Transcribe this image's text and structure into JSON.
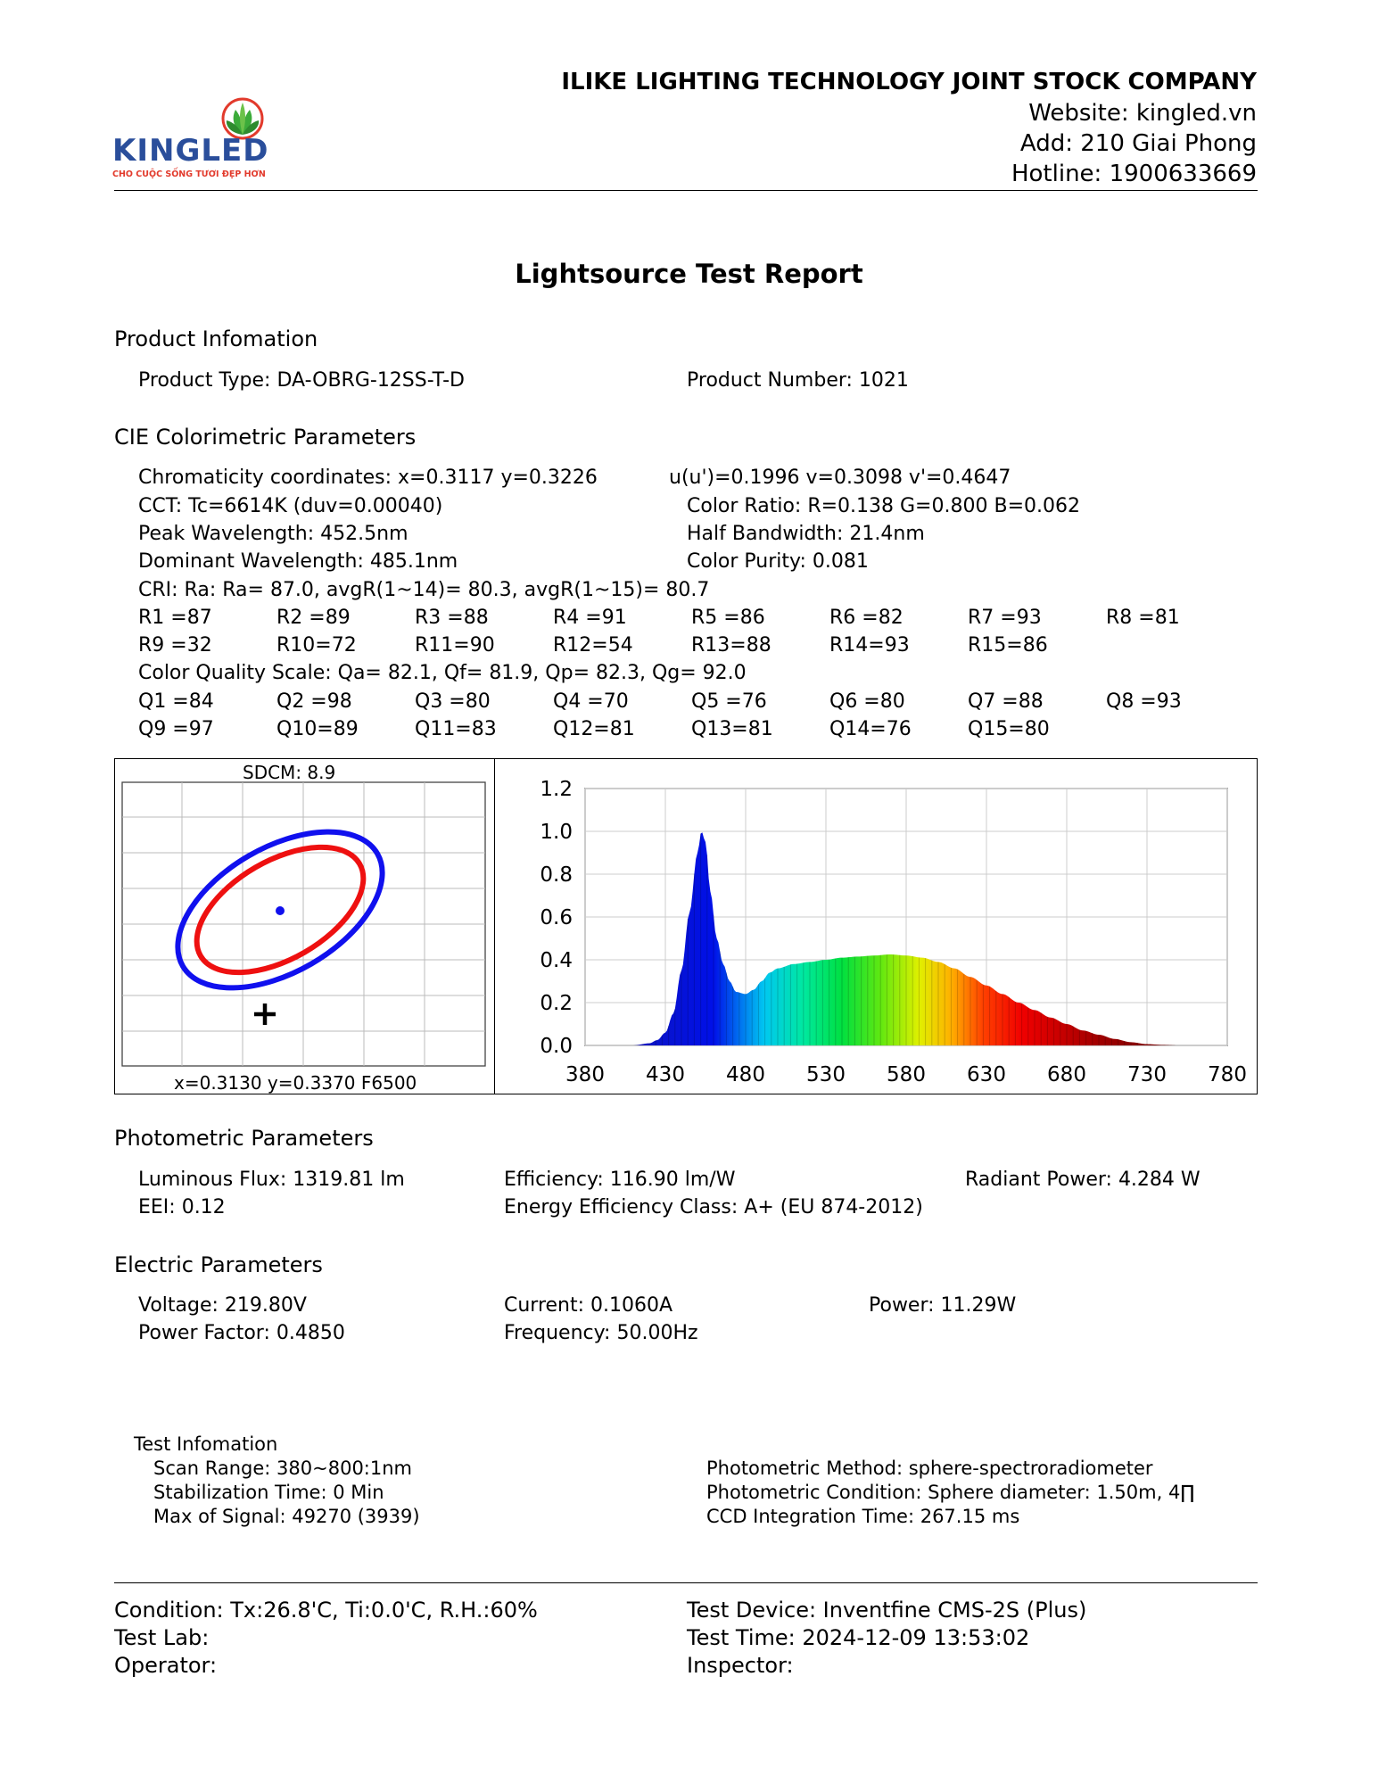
{
  "header": {
    "logo_text": "KINGLED",
    "logo_tagline": "CHO CUỘC SỐNG TƯƠI ĐẸP HƠN",
    "company": "ILIKE LIGHTING TECHNOLOGY JOINT STOCK COMPANY",
    "website": "Website: kingled.vn",
    "address": "Add: 210 Giai Phong",
    "hotline": "Hotline: 1900633669"
  },
  "title": "Lightsource Test Report",
  "product": {
    "heading": "Product Infomation",
    "type": "Product Type: DA-OBRG-12SS-T-D",
    "number": "Product Number: 1021"
  },
  "cie": {
    "heading": "CIE Colorimetric Parameters",
    "chroma": "Chromaticity coordinates: x=0.3117 y=0.3226",
    "uv": "u(u')=0.1996 v=0.3098 v'=0.4647",
    "cct": "CCT: Tc=6614K (duv=0.00040)",
    "color_ratio": "Color Ratio: R=0.138  G=0.800  B=0.062",
    "peak": "Peak Wavelength: 452.5nm",
    "half_bw": "Half Bandwidth: 21.4nm",
    "dominant": "Dominant Wavelength: 485.1nm",
    "purity": "Color Purity: 0.081",
    "cri": "CRI: Ra: Ra= 87.0, avgR(1~14)= 80.3, avgR(1~15)= 80.7",
    "r_row1": [
      "R1 =87",
      "R2 =89",
      "R3 =88",
      "R4 =91",
      "R5 =86",
      "R6 =82",
      "R7 =93",
      "R8 =81"
    ],
    "r_row2": [
      "R9 =32",
      "R10=72",
      "R11=90",
      "R12=54",
      "R13=88",
      "R14=93",
      "R15=86"
    ],
    "cqs": "Color Quality Scale: Qa= 82.1, Qf= 81.9, Qp= 82.3, Qg= 92.0",
    "q_row1": [
      "Q1 =84",
      "Q2 =98",
      "Q3 =80",
      "Q4 =70",
      "Q5 =76",
      "Q6 =80",
      "Q7 =88",
      "Q8 =93"
    ],
    "q_row2": [
      "Q9 =97",
      "Q10=89",
      "Q11=83",
      "Q12=81",
      "Q13=81",
      "Q14=76",
      "Q15=80"
    ]
  },
  "sdcm_chart": {
    "title": "SDCM:   8.9",
    "caption": "x=0.3130 y=0.3370 F6500",
    "colors": {
      "outer": "#1010ee",
      "inner": "#ee1010",
      "point": "#1010ee",
      "target": "#000000"
    }
  },
  "chart_data": {
    "type": "area",
    "title": "",
    "xlabel": "",
    "ylabel": "",
    "xlim": [
      380,
      780
    ],
    "ylim": [
      0,
      1.2
    ],
    "x_ticks": [
      "380",
      "430",
      "480",
      "530",
      "580",
      "630",
      "680",
      "730",
      "780"
    ],
    "y_ticks": [
      "1.2",
      "1.0",
      "0.8",
      "0.6",
      "0.4",
      "0.2",
      "0.0"
    ],
    "grid": true,
    "series": [
      {
        "x": [
          380,
          410,
          420,
          425,
          430,
          435,
          440,
          445,
          450,
          452.5,
          455,
          458,
          462,
          466,
          470,
          474,
          480,
          485,
          490,
          495,
          500,
          510,
          520,
          530,
          540,
          550,
          560,
          570,
          580,
          590,
          600,
          610,
          620,
          630,
          640,
          650,
          660,
          670,
          680,
          690,
          700,
          710,
          720,
          730,
          740,
          750,
          760,
          780
        ],
        "y": [
          0,
          0,
          0.01,
          0.025,
          0.06,
          0.15,
          0.35,
          0.62,
          0.9,
          1.0,
          0.95,
          0.72,
          0.5,
          0.38,
          0.3,
          0.25,
          0.24,
          0.26,
          0.3,
          0.34,
          0.36,
          0.38,
          0.39,
          0.4,
          0.41,
          0.415,
          0.42,
          0.425,
          0.42,
          0.41,
          0.39,
          0.36,
          0.32,
          0.28,
          0.24,
          0.2,
          0.165,
          0.13,
          0.1,
          0.07,
          0.05,
          0.03,
          0.015,
          0.006,
          0.002,
          0,
          0,
          0
        ]
      }
    ]
  },
  "photometric": {
    "heading": "Photometric Parameters",
    "flux": "Luminous Flux: 1319.81 lm",
    "efficiency": "Efficiency: 116.90 lm/W",
    "radiant": "Radiant Power: 4.284 W",
    "eei": "EEI:  0.12",
    "eec": "Energy Efficiency Class: A+ (EU 874-2012)"
  },
  "electric": {
    "heading": "Electric Parameters",
    "voltage": "Voltage: 219.80V",
    "current": "Current: 0.1060A",
    "power": "Power: 11.29W",
    "pf": "Power Factor: 0.4850",
    "frequency": "Frequency: 50.00Hz"
  },
  "test_info": {
    "heading": "Test Infomation",
    "scan": "Scan Range: 380~800:1nm",
    "stab": "Stabilization Time: 0 Min",
    "max_signal": "Max of Signal: 49270 (3939)",
    "method": "Photometric Method: sphere-spectroradiometer",
    "condition": "Photometric Condition: Sphere diameter: 1.50m, 4∏",
    "ccd": "CCD Integration Time: 267.15 ms"
  },
  "footer": {
    "condition": "Condition: Tx:26.8'C, Ti:0.0'C, R.H.:60%",
    "device": "Test Device: Inventfine CMS-2S (Plus)",
    "lab": "Test Lab:",
    "time": "Test Time: 2024-12-09 13:53:02",
    "operator": "Operator:",
    "inspector": "Inspector:"
  }
}
